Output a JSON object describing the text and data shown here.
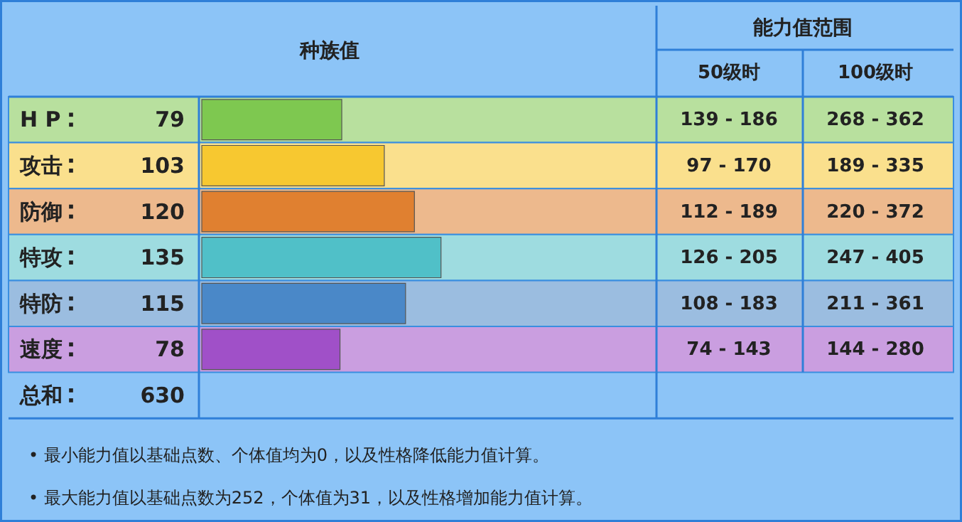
{
  "chart_data": {
    "type": "bar",
    "orientation": "horizontal",
    "title": "种族值",
    "categories": [
      "H P",
      "攻击",
      "防御",
      "特攻",
      "特防",
      "速度"
    ],
    "values": [
      79,
      103,
      120,
      135,
      115,
      78
    ],
    "colors": [
      "#7ec850",
      "#f7c830",
      "#e08030",
      "#50c0c8",
      "#4a88c8",
      "#a050c8"
    ],
    "xlim": [
      0,
      255
    ],
    "data_labels": true,
    "annotations": [
      "能力值范围",
      "50级时",
      "100级时",
      "139 - 186",
      "268 - 362",
      "97 - 170",
      "189 - 335",
      "112 - 189",
      "220 - 372",
      "126 - 205",
      "247 - 405",
      "108 - 183",
      "211 - 361",
      "74 - 143",
      "144 - 280",
      "总和",
      "630",
      "• 最小能力值以基础点数、个体值均为0，以及性格降低能力值计算。",
      "• 最大能力值以基础点数为252，个体值为31，以及性格增加能力值计算。"
    ]
  }
}
